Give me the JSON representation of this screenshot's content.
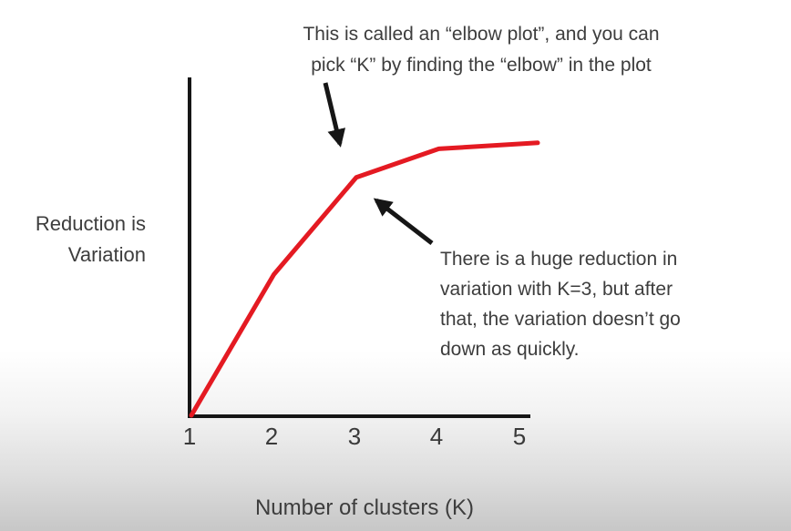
{
  "chart_data": {
    "type": "line",
    "title": "",
    "xlabel": "Number of clusters (K)",
    "ylabel": "Reduction is Variation",
    "x": [
      1,
      2,
      3,
      4,
      5
    ],
    "x_ticks": [
      "1",
      "2",
      "3",
      "4",
      "5"
    ],
    "series": [
      {
        "name": "reduction-in-variation",
        "color": "#e41a22",
        "values": [
          0.0,
          0.42,
          0.71,
          0.795,
          0.81
        ]
      }
    ],
    "ylim": [
      0,
      1
    ],
    "y_tick_labels": [],
    "grid": false,
    "legend_position": "none",
    "annotations": [
      "This is called an “elbow plot”, and you can pick “K” by finding the “elbow” in the plot",
      "There is a huge reduction in variation with K=3, but after that, the variation doesn’t go down as quickly."
    ]
  },
  "annotation_top": {
    "lines": [
      "This is called an “elbow plot”, and you can",
      "pick “K” by finding the “elbow” in the plot"
    ]
  },
  "y_axis_label": {
    "lines": [
      "Reduction is",
      "Variation"
    ]
  },
  "annotation_side": {
    "lines": [
      "There is a huge reduction in",
      "variation with K=3, but after",
      "that, the variation doesn’t go",
      "down as quickly."
    ]
  },
  "x_axis_label": "Number of clusters (K)",
  "colors": {
    "curve": "#e41a22",
    "axis": "#161616",
    "arrow": "#161616",
    "text": "#3d3d3d",
    "background_top": "#ffffff",
    "background_bottom": "#c7c7c7"
  }
}
